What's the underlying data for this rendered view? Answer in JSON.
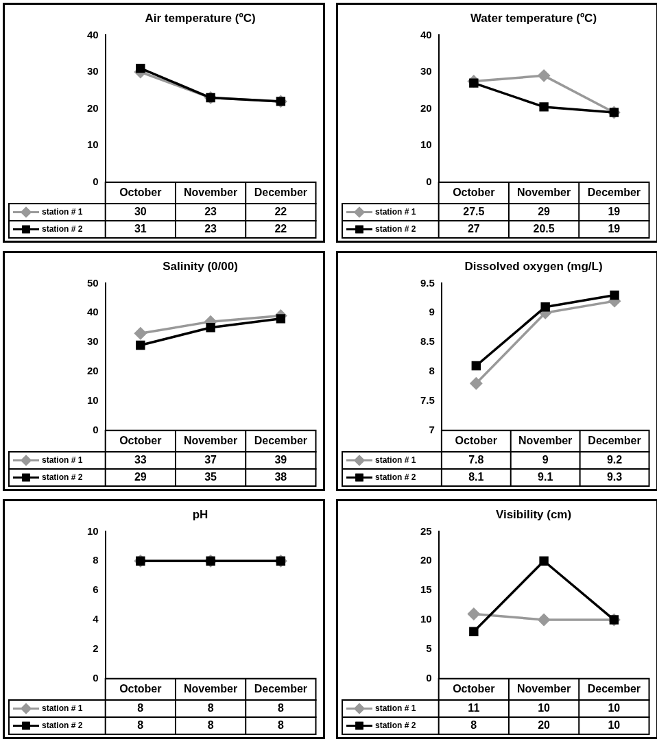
{
  "chart_data": [
    {
      "type": "line",
      "title": "Air temperature (ºC)",
      "categories": [
        "October",
        "November",
        "December"
      ],
      "series": [
        {
          "name": "station # 1",
          "color": "#999999",
          "marker": "diamond",
          "values": [
            30,
            23,
            22
          ]
        },
        {
          "name": "station # 2",
          "color": "#000000",
          "marker": "square",
          "values": [
            31,
            23,
            22
          ]
        }
      ],
      "ylim": [
        0,
        40
      ],
      "yticks": [
        0,
        10,
        20,
        30,
        40
      ],
      "grid": false,
      "legend": "bottom left",
      "data_labels": true
    },
    {
      "type": "line",
      "title": "Water temperature (ºC)",
      "categories": [
        "October",
        "November",
        "December"
      ],
      "series": [
        {
          "name": "station # 1",
          "color": "#999999",
          "marker": "diamond",
          "values": [
            27.5,
            29,
            19
          ]
        },
        {
          "name": "station # 2",
          "color": "#000000",
          "marker": "square",
          "values": [
            27,
            20.5,
            19
          ]
        }
      ],
      "ylim": [
        0,
        40
      ],
      "yticks": [
        0,
        10,
        20,
        30,
        40
      ],
      "grid": false,
      "legend": "bottom left",
      "data_labels": true
    },
    {
      "type": "line",
      "title": "Salinity (0/00)",
      "categories": [
        "October",
        "November",
        "December"
      ],
      "series": [
        {
          "name": "station # 1",
          "color": "#999999",
          "marker": "diamond",
          "values": [
            33,
            37,
            39
          ]
        },
        {
          "name": "station # 2",
          "color": "#000000",
          "marker": "square",
          "values": [
            29,
            35,
            38
          ]
        }
      ],
      "ylim": [
        0,
        50
      ],
      "yticks": [
        0,
        10,
        20,
        30,
        40,
        50
      ],
      "grid": false,
      "legend": "bottom left",
      "data_labels": true
    },
    {
      "type": "line",
      "title": "Dissolved oxygen (mg/L)",
      "categories": [
        "October",
        "November",
        "December"
      ],
      "series": [
        {
          "name": "station # 1",
          "color": "#999999",
          "marker": "diamond",
          "values": [
            7.8,
            9,
            9.2
          ]
        },
        {
          "name": "station # 2",
          "color": "#000000",
          "marker": "square",
          "values": [
            8.1,
            9.1,
            9.3
          ]
        }
      ],
      "ylim": [
        7,
        9.5
      ],
      "yticks": [
        7,
        7.5,
        8,
        8.5,
        9,
        9.5
      ],
      "grid": false,
      "legend": "bottom left",
      "data_labels": true
    },
    {
      "type": "line",
      "title": "pH",
      "categories": [
        "October",
        "November",
        "December"
      ],
      "series": [
        {
          "name": "station # 1",
          "color": "#999999",
          "marker": "diamond",
          "values": [
            8,
            8,
            8
          ]
        },
        {
          "name": "station # 2",
          "color": "#000000",
          "marker": "square",
          "values": [
            8,
            8,
            8
          ]
        }
      ],
      "ylim": [
        0,
        10
      ],
      "yticks": [
        0,
        2,
        4,
        6,
        8,
        10
      ],
      "grid": false,
      "legend": "bottom left",
      "data_labels": true
    },
    {
      "type": "line",
      "title": "Visibility (cm)",
      "categories": [
        "October",
        "November",
        "December"
      ],
      "series": [
        {
          "name": "station # 1",
          "color": "#999999",
          "marker": "diamond",
          "values": [
            11,
            10,
            10
          ]
        },
        {
          "name": "station # 2",
          "color": "#000000",
          "marker": "square",
          "values": [
            8,
            20,
            10
          ]
        }
      ],
      "ylim": [
        0,
        25
      ],
      "yticks": [
        0,
        5,
        10,
        15,
        20,
        25
      ],
      "grid": false,
      "legend": "bottom left",
      "data_labels": true
    }
  ]
}
